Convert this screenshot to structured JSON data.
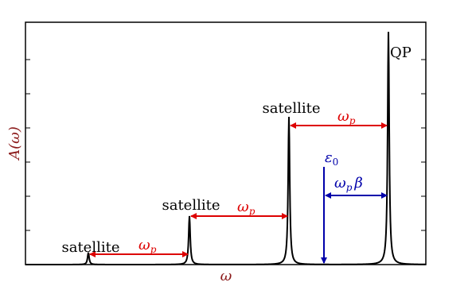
{
  "axes": {
    "x_label": "ω",
    "y_label": "A(ω)"
  },
  "peaks": [
    {
      "label": "satellite"
    },
    {
      "label": "satellite"
    },
    {
      "label": "satellite"
    },
    {
      "label": "QP"
    }
  ],
  "spacings": [
    {
      "symbol": "ω",
      "subscript": "p"
    },
    {
      "symbol": "ω",
      "subscript": "p"
    },
    {
      "symbol": "ω",
      "subscript": "p"
    }
  ],
  "energy": {
    "symbol": "ε",
    "subscript": "0"
  },
  "shift": {
    "symbol": "ω",
    "subscript": "p",
    "factor": "β"
  }
}
